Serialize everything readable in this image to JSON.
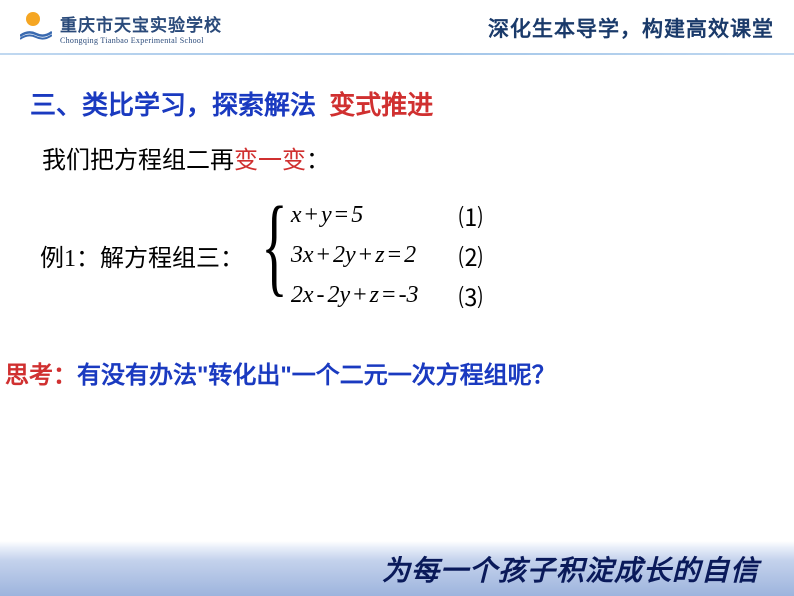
{
  "header": {
    "school_cn": "重庆市天宝实验学校",
    "school_en": "Chongqing Tianbao Experimental School",
    "slogan": "深化生本导学，构建高效课堂",
    "colors": {
      "text": "#2a4a7a",
      "sun": "#f5a623",
      "wave": "#3a6ab0"
    }
  },
  "section": {
    "title_main": "三、类比学习，探索解法",
    "title_sub": "变式推进",
    "title_main_color": "#1a3ac0",
    "title_sub_color": "#d03030",
    "title_fontsize": 26
  },
  "intro": {
    "prefix": "我们把方程组二再",
    "highlight": "变一变",
    "suffix": "：",
    "highlight_color": "#d03030",
    "fontsize": 24
  },
  "example": {
    "label": "例1：解方程组三：",
    "equations": [
      {
        "expr_html": "<i>x</i><span class='op'>+</span><i>y</i><span class='op'>=</span>5",
        "num": "⑴"
      },
      {
        "expr_html": "3<i>x</i><span class='op'>+</span>2<i>y</i><span class='op'>+</span><i>z</i><span class='op'>=</span>2",
        "num": "⑵"
      },
      {
        "expr_html": "2<i>x</i><span class='op'>-</span>2<i>y</i><span class='op'>+</span><i>z</i><span class='op'>=</span>-3",
        "num": "⑶"
      }
    ],
    "fontsize": 24
  },
  "think": {
    "label": "思考：",
    "body": "有没有办法\"转化出\"一个二元一次方程组呢？",
    "label_color": "#d03030",
    "body_color": "#1a3ac0",
    "fontsize": 24
  },
  "footer": {
    "text": "为每一个孩子积淀成长的自信",
    "gradient": [
      "#ffffff",
      "#e8eef9",
      "#c4d2ec",
      "#9db4dd"
    ],
    "text_color": "#0a1a5a",
    "fontsize": 28
  }
}
